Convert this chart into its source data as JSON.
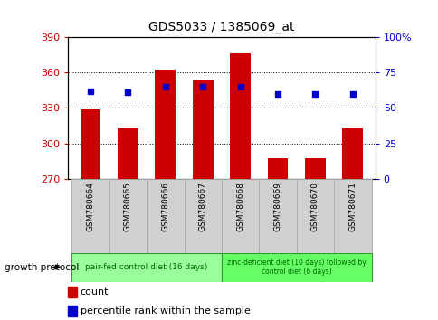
{
  "title": "GDS5033 / 1385069_at",
  "samples": [
    "GSM780664",
    "GSM780665",
    "GSM780666",
    "GSM780667",
    "GSM780668",
    "GSM780669",
    "GSM780670",
    "GSM780671"
  ],
  "bar_values": [
    329,
    313,
    362,
    354,
    376,
    288,
    288,
    313
  ],
  "bar_base": 270,
  "percentile_values": [
    62,
    61,
    65,
    65,
    65,
    60,
    60,
    60
  ],
  "ylim_left": [
    270,
    390
  ],
  "yticks_left": [
    270,
    300,
    330,
    360,
    390
  ],
  "ylim_right": [
    0,
    100
  ],
  "yticks_right": [
    0,
    25,
    50,
    75,
    100
  ],
  "bar_color": "#cc0000",
  "dot_color": "#0000cc",
  "group1_label": "pair-fed control diet (16 days)",
  "group2_label": "zinc-deficient diet (10 days) followed by\ncontrol diet (6 days)",
  "group1_indices": [
    0,
    1,
    2,
    3
  ],
  "group2_indices": [
    4,
    5,
    6,
    7
  ],
  "group1_color": "#99ff99",
  "group2_color": "#66ff66",
  "group_border_color": "#339933",
  "sample_box_color": "#d0d0d0",
  "protocol_label": "growth protocol",
  "legend_count_label": "count",
  "legend_pct_label": "percentile rank within the sample",
  "title_color": "#000000",
  "left_axis_color": "#cc0000",
  "right_axis_color": "#0000cc"
}
